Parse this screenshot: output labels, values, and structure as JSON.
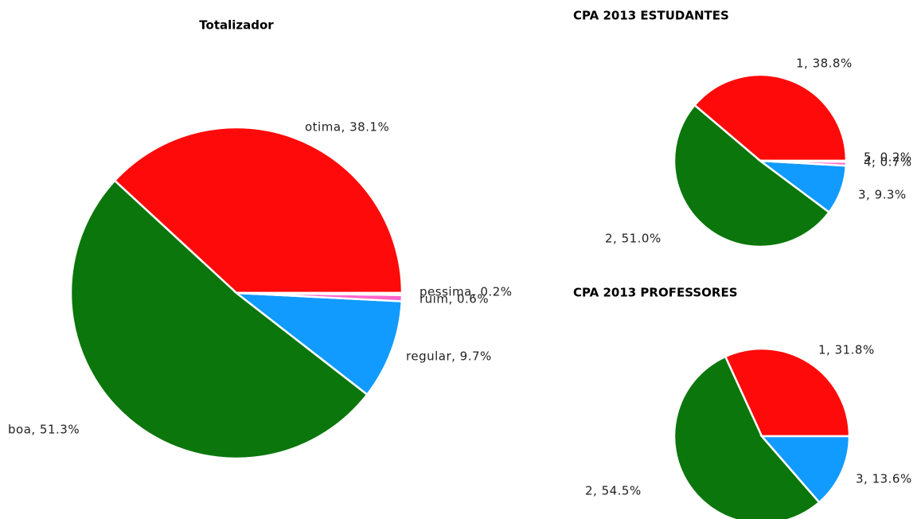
{
  "chart_data": [
    {
      "type": "pie",
      "title": "Totalizador",
      "values": [
        38.1,
        51.3,
        9.7,
        0.6,
        0.2
      ],
      "value_labels": [
        "otima, 38.1%",
        "boa, 51.3%",
        "regular, 9.7%",
        "ruim, 0.6%",
        "pessima, 0.2%"
      ],
      "colors": [
        "#ff0a0a",
        "#0b760b",
        "#119bff",
        "#ff66cc",
        "#cc33cc"
      ]
    },
    {
      "type": "pie",
      "title": "CPA 2013 ESTUDANTES",
      "values": [
        38.8,
        51.0,
        9.3,
        0.7,
        0.2
      ],
      "value_labels": [
        "1, 38.8%",
        "2, 51.0%",
        "3, 9.3%",
        "4, 0.7%",
        "5, 0.2%"
      ],
      "colors": [
        "#ff0a0a",
        "#0b760b",
        "#119bff",
        "#ff66cc",
        "#cc33cc"
      ]
    },
    {
      "type": "pie",
      "title": "CPA 2013 PROFESSORES",
      "values": [
        31.8,
        54.5,
        13.6
      ],
      "value_labels": [
        "1, 31.8%",
        "2, 54.5%",
        "3, 13.6%"
      ],
      "colors": [
        "#ff0a0a",
        "#0b760b",
        "#119bff"
      ]
    }
  ]
}
